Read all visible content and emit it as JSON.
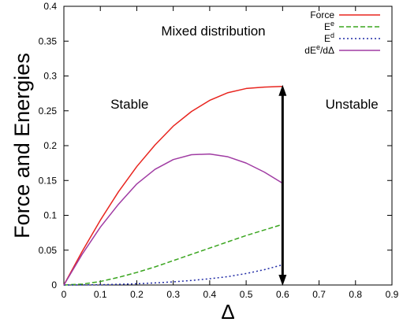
{
  "chart_data": {
    "type": "line",
    "title": "",
    "xlabel": "Δ",
    "ylabel": "Force and Energies",
    "xlim": [
      0,
      0.9
    ],
    "ylim": [
      0,
      0.4
    ],
    "xticks": [
      0,
      0.1,
      0.2,
      0.3,
      0.4,
      0.5,
      0.6,
      0.7,
      0.8,
      0.9
    ],
    "yticks": [
      0,
      0.05,
      0.1,
      0.15,
      0.2,
      0.25,
      0.3,
      0.35,
      0.4
    ],
    "grid": false,
    "legend_position": "top-right",
    "series": [
      {
        "name": "Force",
        "color": "#e8251f",
        "style": "solid",
        "x": [
          0,
          0.05,
          0.1,
          0.15,
          0.2,
          0.25,
          0.3,
          0.35,
          0.4,
          0.45,
          0.5,
          0.55,
          0.6
        ],
        "y": [
          0,
          0.048,
          0.093,
          0.134,
          0.17,
          0.201,
          0.228,
          0.249,
          0.265,
          0.276,
          0.282,
          0.284,
          0.285
        ]
      },
      {
        "name": "E^e",
        "color": "#3aa51f",
        "style": "dashed",
        "x": [
          0,
          0.05,
          0.1,
          0.15,
          0.2,
          0.25,
          0.3,
          0.35,
          0.4,
          0.45,
          0.5,
          0.55,
          0.6
        ],
        "y": [
          0,
          0.0013,
          0.005,
          0.011,
          0.018,
          0.026,
          0.035,
          0.044,
          0.053,
          0.062,
          0.071,
          0.079,
          0.087
        ]
      },
      {
        "name": "E^d",
        "color": "#1f2aa5",
        "style": "dotted",
        "x": [
          0,
          0.05,
          0.1,
          0.15,
          0.2,
          0.25,
          0.3,
          0.35,
          0.4,
          0.45,
          0.5,
          0.55,
          0.6
        ],
        "y": [
          0,
          0.0001,
          0.0004,
          0.001,
          0.0018,
          0.003,
          0.0045,
          0.0065,
          0.009,
          0.012,
          0.0165,
          0.022,
          0.029
        ]
      },
      {
        "name": "dE^e/dΔ",
        "color": "#a03ca3",
        "style": "solid",
        "x": [
          0,
          0.05,
          0.1,
          0.15,
          0.2,
          0.25,
          0.3,
          0.35,
          0.4,
          0.45,
          0.5,
          0.55,
          0.6
        ],
        "y": [
          0,
          0.044,
          0.083,
          0.116,
          0.145,
          0.166,
          0.18,
          0.187,
          0.188,
          0.184,
          0.175,
          0.162,
          0.146
        ]
      }
    ],
    "annotations": [
      {
        "text": "Mixed distribution",
        "x": 0.41,
        "y": 0.365
      },
      {
        "text": "Stable",
        "x": 0.18,
        "y": 0.26
      },
      {
        "text": "Unstable",
        "x": 0.79,
        "y": 0.26
      }
    ],
    "arrow": {
      "x": 0.6,
      "y_from": 0.0,
      "y_to": 0.285,
      "color": "#000000",
      "double_headed": true
    }
  }
}
